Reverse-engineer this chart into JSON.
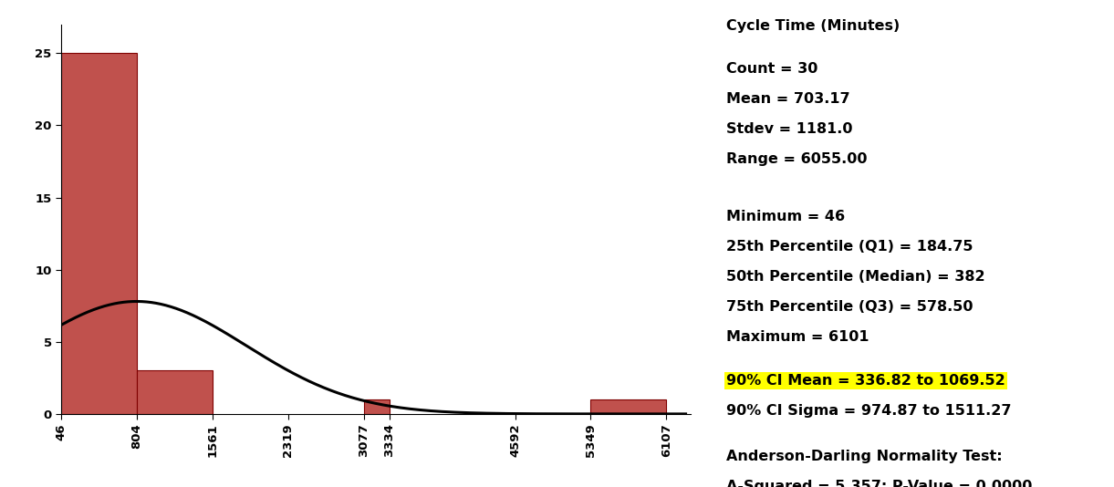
{
  "bar_edges": [
    46,
    804,
    1561,
    2319,
    3077,
    3334,
    4592,
    5349,
    6107
  ],
  "bar_heights": [
    25,
    3,
    0,
    0,
    1,
    0,
    0,
    1,
    0
  ],
  "bar_color": "#c0514d",
  "bar_edgecolor": "#7f0000",
  "curve_color": "#000000",
  "xlabel": "Cycle Time (Minutes)",
  "yticks": [
    0,
    5,
    10,
    15,
    20,
    25
  ],
  "xticks": [
    46,
    804,
    1561,
    2319,
    3077,
    3334,
    4592,
    5349,
    6107
  ],
  "xlim": [
    46,
    6350
  ],
  "ylim": [
    0,
    27
  ],
  "curve_peak_x": 800,
  "curve_peak_y": 7.8,
  "curve_sigma": 1100,
  "stats_title": "Cycle Time (Minutes)",
  "stats_lines": [
    "Count = 30",
    "Mean = 703.17",
    "Stdev = 1181.0",
    "Range = 6055.00",
    "",
    "Minimum = 46",
    "25th Percentile (Q1) = 184.75",
    "50th Percentile (Median) = 382",
    "75th Percentile (Q3) = 578.50",
    "Maximum = 6101"
  ],
  "ci_mean_line": "90% CI Mean = 336.82 to 1069.52",
  "ci_sigma_line": "90% CI Sigma = 974.87 to 1511.27",
  "ad_title": "Anderson-Darling Normality Test:",
  "ad_line": "A-Squared = 5.357; P-Value = 0.0000",
  "highlight_color": "#ffff00",
  "background_color": "#ffffff",
  "font_size": 11.5
}
